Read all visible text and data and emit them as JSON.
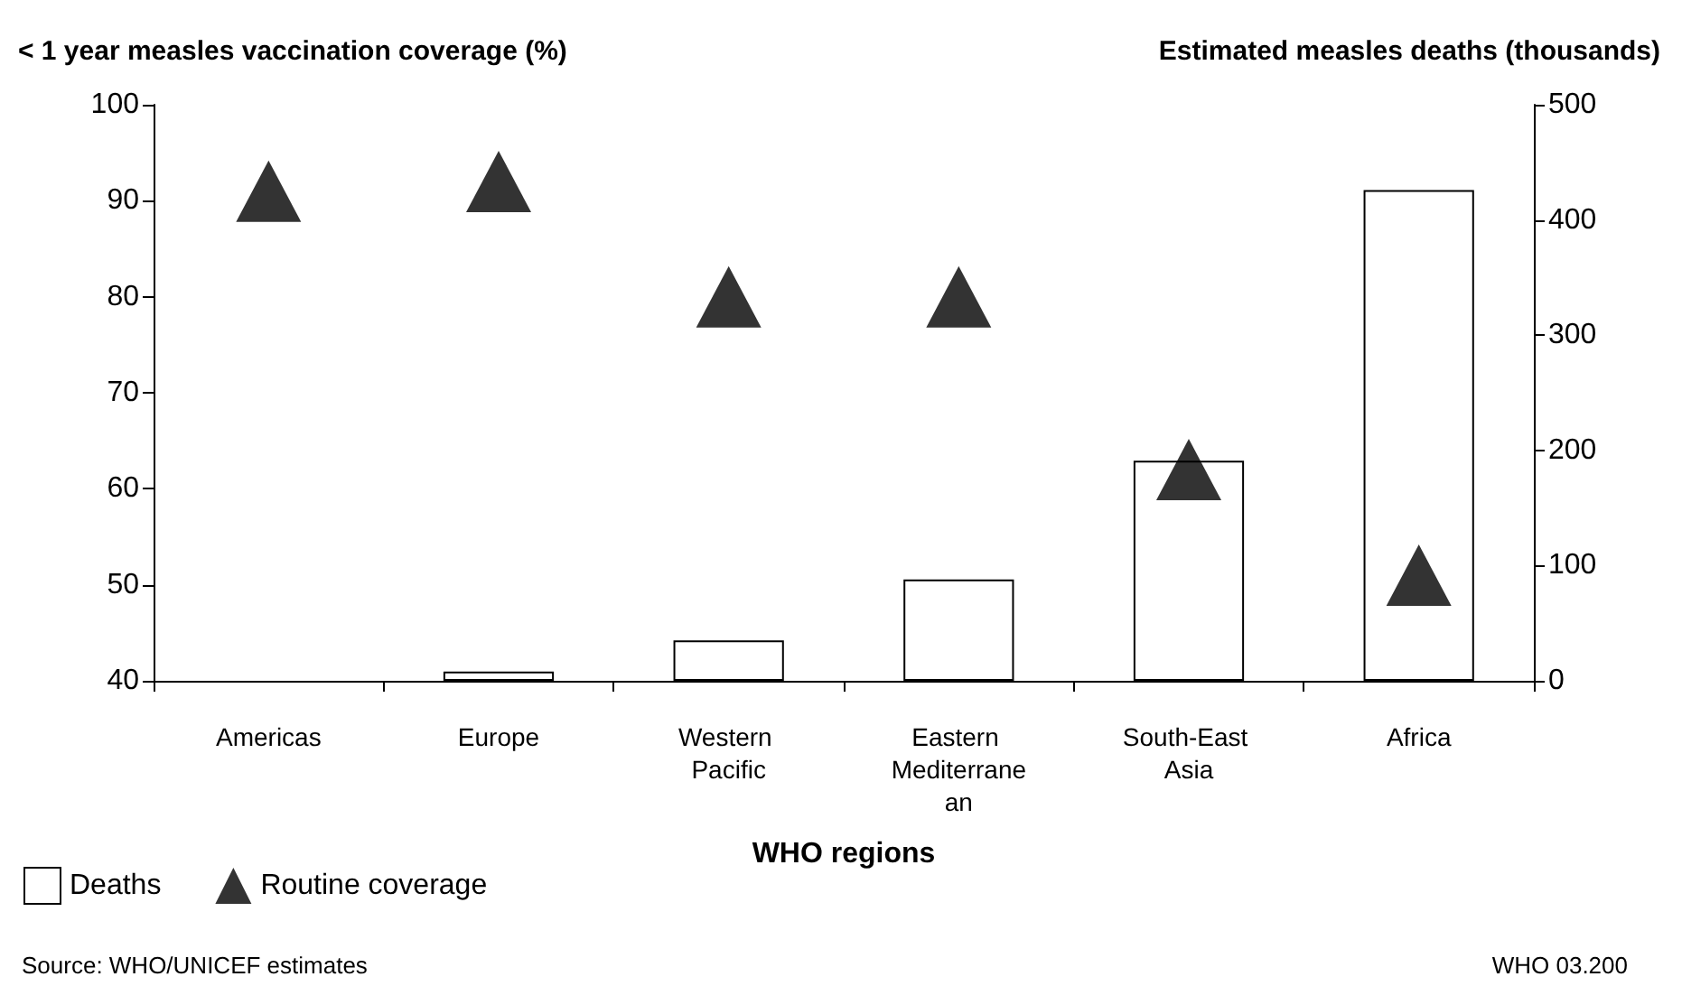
{
  "chart_data": {
    "type": "bar",
    "xlabel": "WHO regions",
    "ylabel": "< 1 year measles vaccination coverage (%)",
    "y2label": "Estimated measles deaths (thousands)",
    "categories": [
      "Americas",
      "Europe",
      "Western Pacific",
      "Eastern Mediterranean",
      "South-East Asia",
      "Africa"
    ],
    "series": [
      {
        "name": "Deaths",
        "axis": "y2",
        "color": "#ffffff",
        "values": [
          null,
          8,
          35,
          88,
          191,
          426
        ]
      },
      {
        "name": "Routine coverage",
        "type": "scatter",
        "axis": "y",
        "color": "#000000",
        "values": [
          91,
          92,
          80,
          80,
          62,
          51
        ]
      }
    ],
    "marker": "triangle",
    "ylim": [
      40,
      100
    ],
    "yticks": [
      40,
      50,
      60,
      70,
      80,
      90,
      100
    ],
    "y2lim": [
      0,
      500
    ],
    "y2ticks": [
      0,
      100,
      200,
      300,
      400,
      500
    ],
    "grid": false,
    "legend": "bottom left",
    "annotations": [
      "Source: WHO/UNICEF estimates",
      "WHO 03.200"
    ]
  }
}
